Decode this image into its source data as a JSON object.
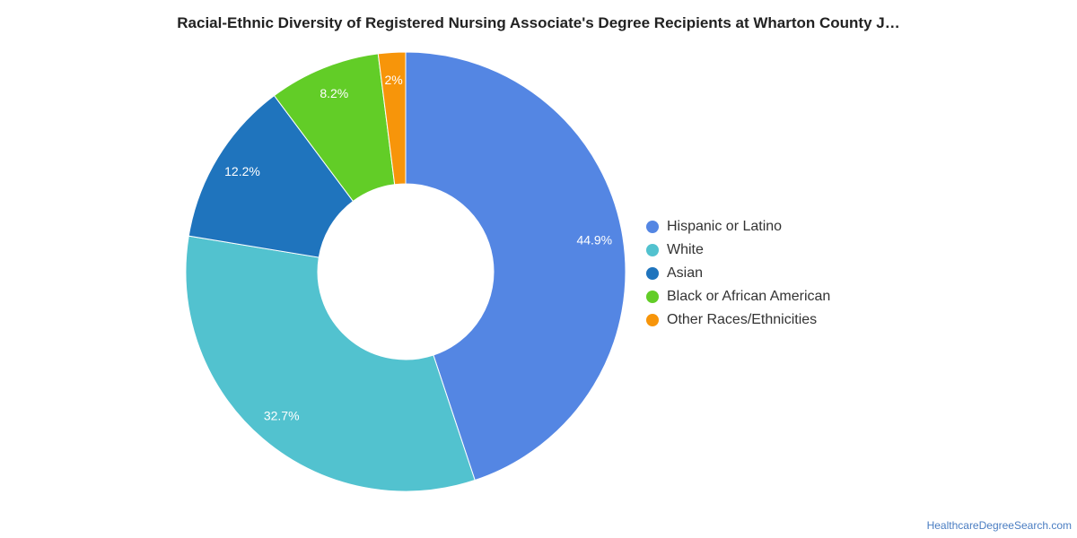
{
  "chart_data": {
    "type": "pie",
    "variant": "donut",
    "title": "Racial-Ethnic Diversity of Registered Nursing Associate's Degree Recipients at Wharton County J…",
    "slices": [
      {
        "name": "Hispanic or Latino",
        "value": 44.9,
        "label": "44.9%",
        "color": "#5486e3"
      },
      {
        "name": "White",
        "value": 32.7,
        "label": "32.7%",
        "color": "#52c2cf"
      },
      {
        "name": "Asian",
        "value": 12.2,
        "label": "12.2%",
        "color": "#1f74bd"
      },
      {
        "name": "Black or African American",
        "value": 8.2,
        "label": "8.2%",
        "color": "#62cd27"
      },
      {
        "name": "Other Races/Ethnicities",
        "value": 2.0,
        "label": "2%",
        "color": "#f7950a"
      }
    ],
    "legend_position": "right"
  },
  "footer": {
    "source": "HealthcareDegreeSearch.com"
  }
}
